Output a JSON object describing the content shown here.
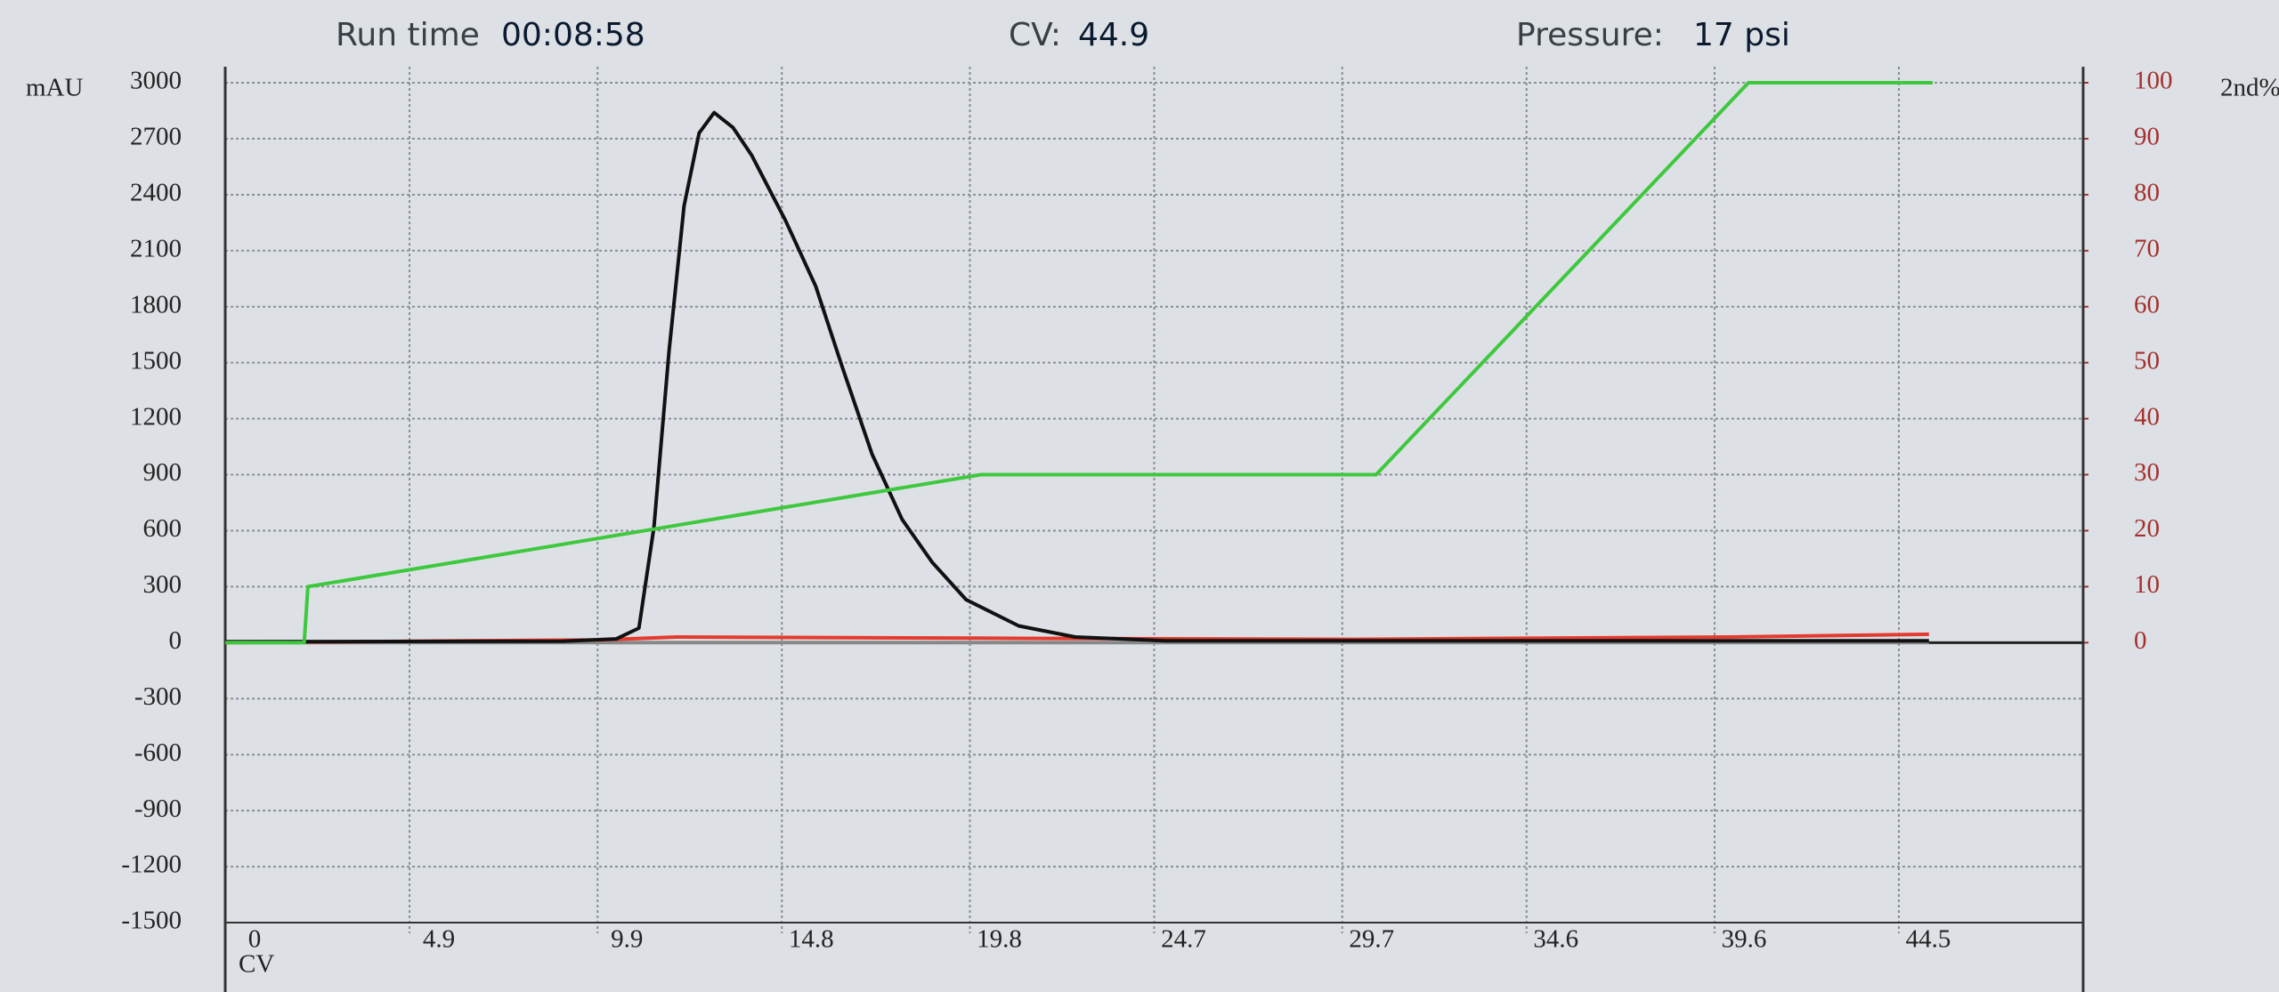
{
  "chart_data": {
    "type": "line",
    "status": [
      {
        "label": "Run time",
        "value": "00:08:58"
      },
      {
        "label": "CV:",
        "value": "44.9"
      },
      {
        "label": "Pressure:",
        "value": "17 psi"
      }
    ],
    "ylabel": "mAU",
    "y2label": "2nd%",
    "xlabel": "CV",
    "xlim": [
      0,
      49.4
    ],
    "xticks": [
      0,
      4.9,
      9.9,
      14.8,
      19.8,
      24.7,
      29.7,
      34.6,
      39.6,
      44.5
    ],
    "ylim": [
      -1500,
      3000
    ],
    "yticks": [
      -1500,
      -1200,
      -900,
      -600,
      -300,
      0,
      300,
      600,
      900,
      1200,
      1500,
      1800,
      2100,
      2400,
      2700,
      3000
    ],
    "y2lim": [
      -50,
      100
    ],
    "y2ticks": [
      0,
      10,
      20,
      30,
      40,
      50,
      60,
      70,
      80,
      90,
      100
    ],
    "grid": true,
    "series": [
      {
        "color": "#888888",
        "axis": "y2",
        "x": [
          0,
          45.3
        ],
        "values": [
          0,
          0
        ]
      },
      {
        "color": "#e53a2e",
        "axis": "y2",
        "x": [
          0,
          10,
          12,
          20,
          30,
          40,
          45.3
        ],
        "values": [
          0,
          0.5,
          1,
          0.8,
          0.6,
          1,
          1.5
        ]
      },
      {
        "color": "#111111",
        "axis": "y",
        "x": [
          0,
          9,
          10.4,
          11.0,
          11.4,
          11.8,
          12.2,
          12.6,
          13.0,
          13.5,
          14.0,
          14.9,
          15.7,
          16.4,
          17.2,
          18.0,
          18.8,
          19.7,
          21.1,
          22.6,
          25.0,
          45.3
        ],
        "values": [
          5,
          8,
          20,
          78,
          620,
          1560,
          2340,
          2730,
          2840,
          2760,
          2610,
          2260,
          1910,
          1480,
          1010,
          660,
          430,
          230,
          90,
          30,
          10,
          10
        ]
      },
      {
        "color": "#3ec83e",
        "axis": "y2",
        "x": [
          0,
          2.1,
          2.2,
          20.1,
          30.6,
          40.5,
          45.4
        ],
        "values": [
          0,
          0,
          10,
          30,
          30,
          100,
          100
        ]
      }
    ]
  }
}
